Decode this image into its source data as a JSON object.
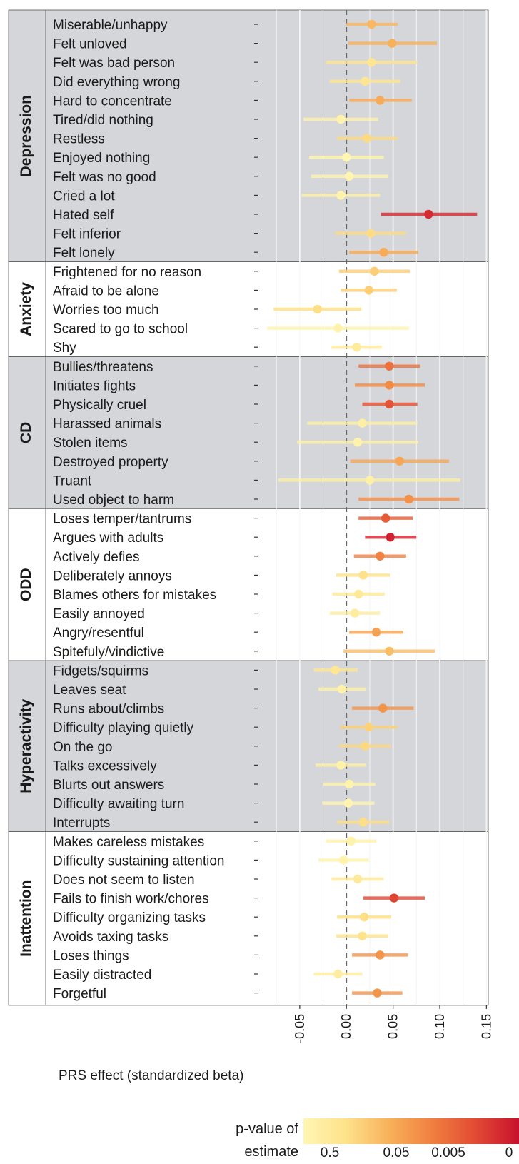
{
  "chart_data": {
    "type": "forest",
    "xlabel": "PRS effect (standardized beta)",
    "xlim": [
      -0.095,
      0.152
    ],
    "xticks": [
      -0.05,
      0.0,
      0.05,
      0.1,
      0.15
    ],
    "xtick_labels": [
      "-0.05",
      "0.00",
      "0.05",
      "0.10",
      "0.15"
    ],
    "reference_line": 0,
    "grid": true,
    "legend": {
      "title_line1": "p-value of",
      "title_line2": "estimate",
      "ticks": [
        "0.5",
        "0.05",
        "0.005",
        "0"
      ],
      "placement": "bottom-right",
      "colors": [
        "#fff6b3",
        "#fde28a",
        "#f8b05a",
        "#f07f40",
        "#e24a33",
        "#c8102e"
      ]
    },
    "groups": [
      {
        "name": "Depression",
        "shaded": true,
        "items": [
          {
            "label": "Miserable/unhappy",
            "beta": 0.027,
            "lo": 0.0,
            "hi": 0.055,
            "p": 0.06
          },
          {
            "label": "Felt unloved",
            "beta": 0.049,
            "lo": 0.002,
            "hi": 0.097,
            "p": 0.05
          },
          {
            "label": "Felt was bad person",
            "beta": 0.027,
            "lo": -0.022,
            "hi": 0.076,
            "p": 0.28
          },
          {
            "label": "Did everything wrong",
            "beta": 0.02,
            "lo": -0.018,
            "hi": 0.058,
            "p": 0.3
          },
          {
            "label": "Hard to concentrate",
            "beta": 0.036,
            "lo": 0.003,
            "hi": 0.07,
            "p": 0.04
          },
          {
            "label": "Tired/did nothing",
            "beta": -0.006,
            "lo": -0.046,
            "hi": 0.034,
            "p": 0.76
          },
          {
            "label": "Restless",
            "beta": 0.022,
            "lo": -0.01,
            "hi": 0.055,
            "p": 0.17
          },
          {
            "label": "Enjoyed nothing",
            "beta": 0.0,
            "lo": -0.04,
            "hi": 0.04,
            "p": 0.98
          },
          {
            "label": "Felt was no good",
            "beta": 0.003,
            "lo": -0.038,
            "hi": 0.045,
            "p": 0.88
          },
          {
            "label": "Cried a lot",
            "beta": -0.006,
            "lo": -0.048,
            "hi": 0.036,
            "p": 0.78
          },
          {
            "label": "Hated self",
            "beta": 0.088,
            "lo": 0.037,
            "hi": 0.14,
            "p": 0.001
          },
          {
            "label": "Felt inferior",
            "beta": 0.026,
            "lo": -0.012,
            "hi": 0.064,
            "p": 0.18
          },
          {
            "label": "Felt lonely",
            "beta": 0.04,
            "lo": 0.003,
            "hi": 0.077,
            "p": 0.04
          }
        ]
      },
      {
        "name": "Anxiety",
        "shaded": false,
        "items": [
          {
            "label": "Frightened for no reason",
            "beta": 0.03,
            "lo": -0.008,
            "hi": 0.068,
            "p": 0.12
          },
          {
            "label": "Afraid to be alone",
            "beta": 0.024,
            "lo": -0.006,
            "hi": 0.054,
            "p": 0.12
          },
          {
            "label": "Worries too much",
            "beta": -0.031,
            "lo": -0.078,
            "hi": 0.016,
            "p": 0.2
          },
          {
            "label": "Scared to go to school",
            "beta": -0.009,
            "lo": -0.085,
            "hi": 0.067,
            "p": 0.82
          },
          {
            "label": "Shy",
            "beta": 0.011,
            "lo": -0.016,
            "hi": 0.038,
            "p": 0.43
          }
        ]
      },
      {
        "name": "CD",
        "shaded": true,
        "items": [
          {
            "label": "Bullies/threatens",
            "beta": 0.046,
            "lo": 0.013,
            "hi": 0.079,
            "p": 0.007
          },
          {
            "label": "Initiates fights",
            "beta": 0.046,
            "lo": 0.009,
            "hi": 0.084,
            "p": 0.015
          },
          {
            "label": "Physically cruel",
            "beta": 0.046,
            "lo": 0.017,
            "hi": 0.076,
            "p": 0.003
          },
          {
            "label": "Harassed animals",
            "beta": 0.017,
            "lo": -0.042,
            "hi": 0.076,
            "p": 0.58
          },
          {
            "label": "Stolen items",
            "beta": 0.012,
            "lo": -0.053,
            "hi": 0.077,
            "p": 0.72
          },
          {
            "label": "Destroyed property",
            "beta": 0.057,
            "lo": 0.004,
            "hi": 0.11,
            "p": 0.035
          },
          {
            "label": "Truant",
            "beta": 0.025,
            "lo": -0.073,
            "hi": 0.122,
            "p": 0.62
          },
          {
            "label": "Used object to harm",
            "beta": 0.067,
            "lo": 0.013,
            "hi": 0.121,
            "p": 0.018
          }
        ]
      },
      {
        "name": "ODD",
        "shaded": false,
        "items": [
          {
            "label": "Loses temper/tantrums",
            "beta": 0.042,
            "lo": 0.013,
            "hi": 0.071,
            "p": 0.004
          },
          {
            "label": "Argues with adults",
            "beta": 0.047,
            "lo": 0.02,
            "hi": 0.075,
            "p": 0.0008
          },
          {
            "label": "Actively defies",
            "beta": 0.036,
            "lo": 0.008,
            "hi": 0.064,
            "p": 0.012
          },
          {
            "label": "Deliberately annoys",
            "beta": 0.018,
            "lo": -0.011,
            "hi": 0.047,
            "p": 0.22
          },
          {
            "label": "Blames others for mistakes",
            "beta": 0.013,
            "lo": -0.015,
            "hi": 0.041,
            "p": 0.37
          },
          {
            "label": "Easily annoyed",
            "beta": 0.009,
            "lo": -0.018,
            "hi": 0.036,
            "p": 0.52
          },
          {
            "label": "Angry/resentful",
            "beta": 0.032,
            "lo": 0.003,
            "hi": 0.061,
            "p": 0.03
          },
          {
            "label": "Spitefuly/vindictive",
            "beta": 0.046,
            "lo": -0.003,
            "hi": 0.095,
            "p": 0.07
          }
        ]
      },
      {
        "name": "Hyperactivity",
        "shaded": true,
        "items": [
          {
            "label": "Fidgets/squirms",
            "beta": -0.012,
            "lo": -0.035,
            "hi": 0.012,
            "p": 0.32
          },
          {
            "label": "Leaves seat",
            "beta": -0.005,
            "lo": -0.03,
            "hi": 0.021,
            "p": 0.7
          },
          {
            "label": "Runs about/climbs",
            "beta": 0.039,
            "lo": 0.006,
            "hi": 0.072,
            "p": 0.02
          },
          {
            "label": "Difficulty playing quietly",
            "beta": 0.024,
            "lo": -0.007,
            "hi": 0.055,
            "p": 0.13
          },
          {
            "label": "On the go",
            "beta": 0.02,
            "lo": -0.008,
            "hi": 0.048,
            "p": 0.16
          },
          {
            "label": "Talks excessively",
            "beta": -0.006,
            "lo": -0.033,
            "hi": 0.021,
            "p": 0.66
          },
          {
            "label": "Blurts out answers",
            "beta": 0.003,
            "lo": -0.025,
            "hi": 0.031,
            "p": 0.83
          },
          {
            "label": "Difficulty awaiting turn",
            "beta": 0.002,
            "lo": -0.026,
            "hi": 0.03,
            "p": 0.88
          },
          {
            "label": "Interrupts",
            "beta": 0.018,
            "lo": -0.01,
            "hi": 0.046,
            "p": 0.2
          }
        ]
      },
      {
        "name": "Inattention",
        "shaded": false,
        "items": [
          {
            "label": "Makes careless mistakes",
            "beta": 0.005,
            "lo": -0.022,
            "hi": 0.032,
            "p": 0.72
          },
          {
            "label": "Difficulty sustaining attention",
            "beta": -0.003,
            "lo": -0.03,
            "hi": 0.024,
            "p": 0.83
          },
          {
            "label": "Does not seem to listen",
            "beta": 0.012,
            "lo": -0.016,
            "hi": 0.04,
            "p": 0.4
          },
          {
            "label": "Fails to finish work/chores",
            "beta": 0.051,
            "lo": 0.018,
            "hi": 0.084,
            "p": 0.002
          },
          {
            "label": "Difficulty organizing tasks",
            "beta": 0.019,
            "lo": -0.01,
            "hi": 0.048,
            "p": 0.2
          },
          {
            "label": "Avoids taxing tasks",
            "beta": 0.017,
            "lo": -0.011,
            "hi": 0.045,
            "p": 0.23
          },
          {
            "label": "Loses things",
            "beta": 0.036,
            "lo": 0.006,
            "hi": 0.066,
            "p": 0.02
          },
          {
            "label": "Easily distracted",
            "beta": -0.009,
            "lo": -0.035,
            "hi": 0.017,
            "p": 0.5
          },
          {
            "label": "Forgetful",
            "beta": 0.033,
            "lo": 0.006,
            "hi": 0.06,
            "p": 0.02
          }
        ]
      }
    ]
  }
}
